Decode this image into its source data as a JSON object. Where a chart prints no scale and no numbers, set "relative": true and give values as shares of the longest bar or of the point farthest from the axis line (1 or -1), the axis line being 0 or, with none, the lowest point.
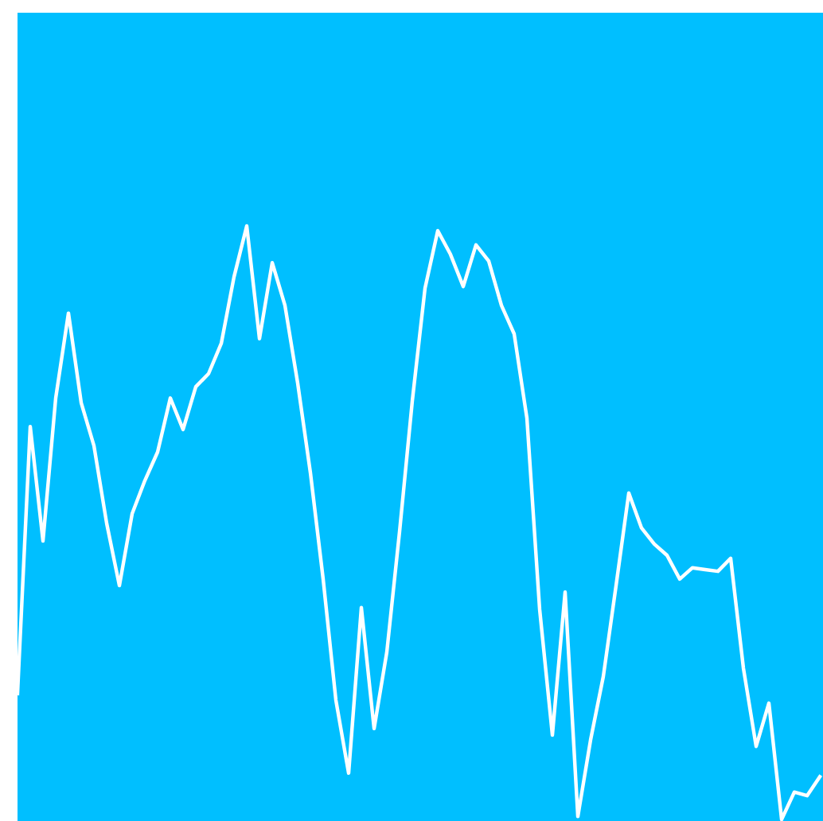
{
  "chart_data": {
    "type": "line",
    "relative": true,
    "categories": [
      null,
      null,
      null,
      null,
      null,
      null,
      null,
      null,
      null,
      null,
      null,
      null,
      null,
      null,
      null,
      null,
      null,
      null,
      null,
      null,
      null,
      null,
      null,
      null,
      null,
      null,
      null,
      null,
      null,
      null,
      null,
      null,
      null,
      null,
      null,
      null,
      null,
      null,
      null,
      null,
      null,
      null,
      null,
      null,
      null,
      null,
      null,
      null,
      null,
      null,
      null,
      null,
      null,
      null,
      null,
      null,
      null,
      null,
      null,
      null,
      null,
      null,
      null,
      null
    ],
    "series": [
      {
        "color": "#ffffff",
        "values": [
          0.212,
          0.662,
          0.469,
          0.71,
          0.853,
          0.702,
          0.63,
          0.499,
          0.394,
          0.515,
          0.571,
          0.619,
          0.71,
          0.657,
          0.729,
          0.751,
          0.802,
          0.914,
          1,
          0.81,
          0.938,
          0.866,
          0.735,
          0.584,
          0.405,
          0.201,
          0.078,
          0.357,
          0.153,
          0.282,
          0.485,
          0.705,
          0.895,
          0.992,
          0.952,
          0.898,
          0.968,
          0.941,
          0.866,
          0.818,
          0.676,
          0.354,
          0.142,
          0.383,
          0.005,
          0.134,
          0.241,
          0.394,
          0.55,
          0.491,
          0.464,
          0.445,
          0.405,
          0.424,
          0.421,
          0.418,
          0.44,
          0.255,
          0.123,
          0.196,
          0,
          0.046,
          0.04,
          0.072
        ]
      }
    ]
  }
}
